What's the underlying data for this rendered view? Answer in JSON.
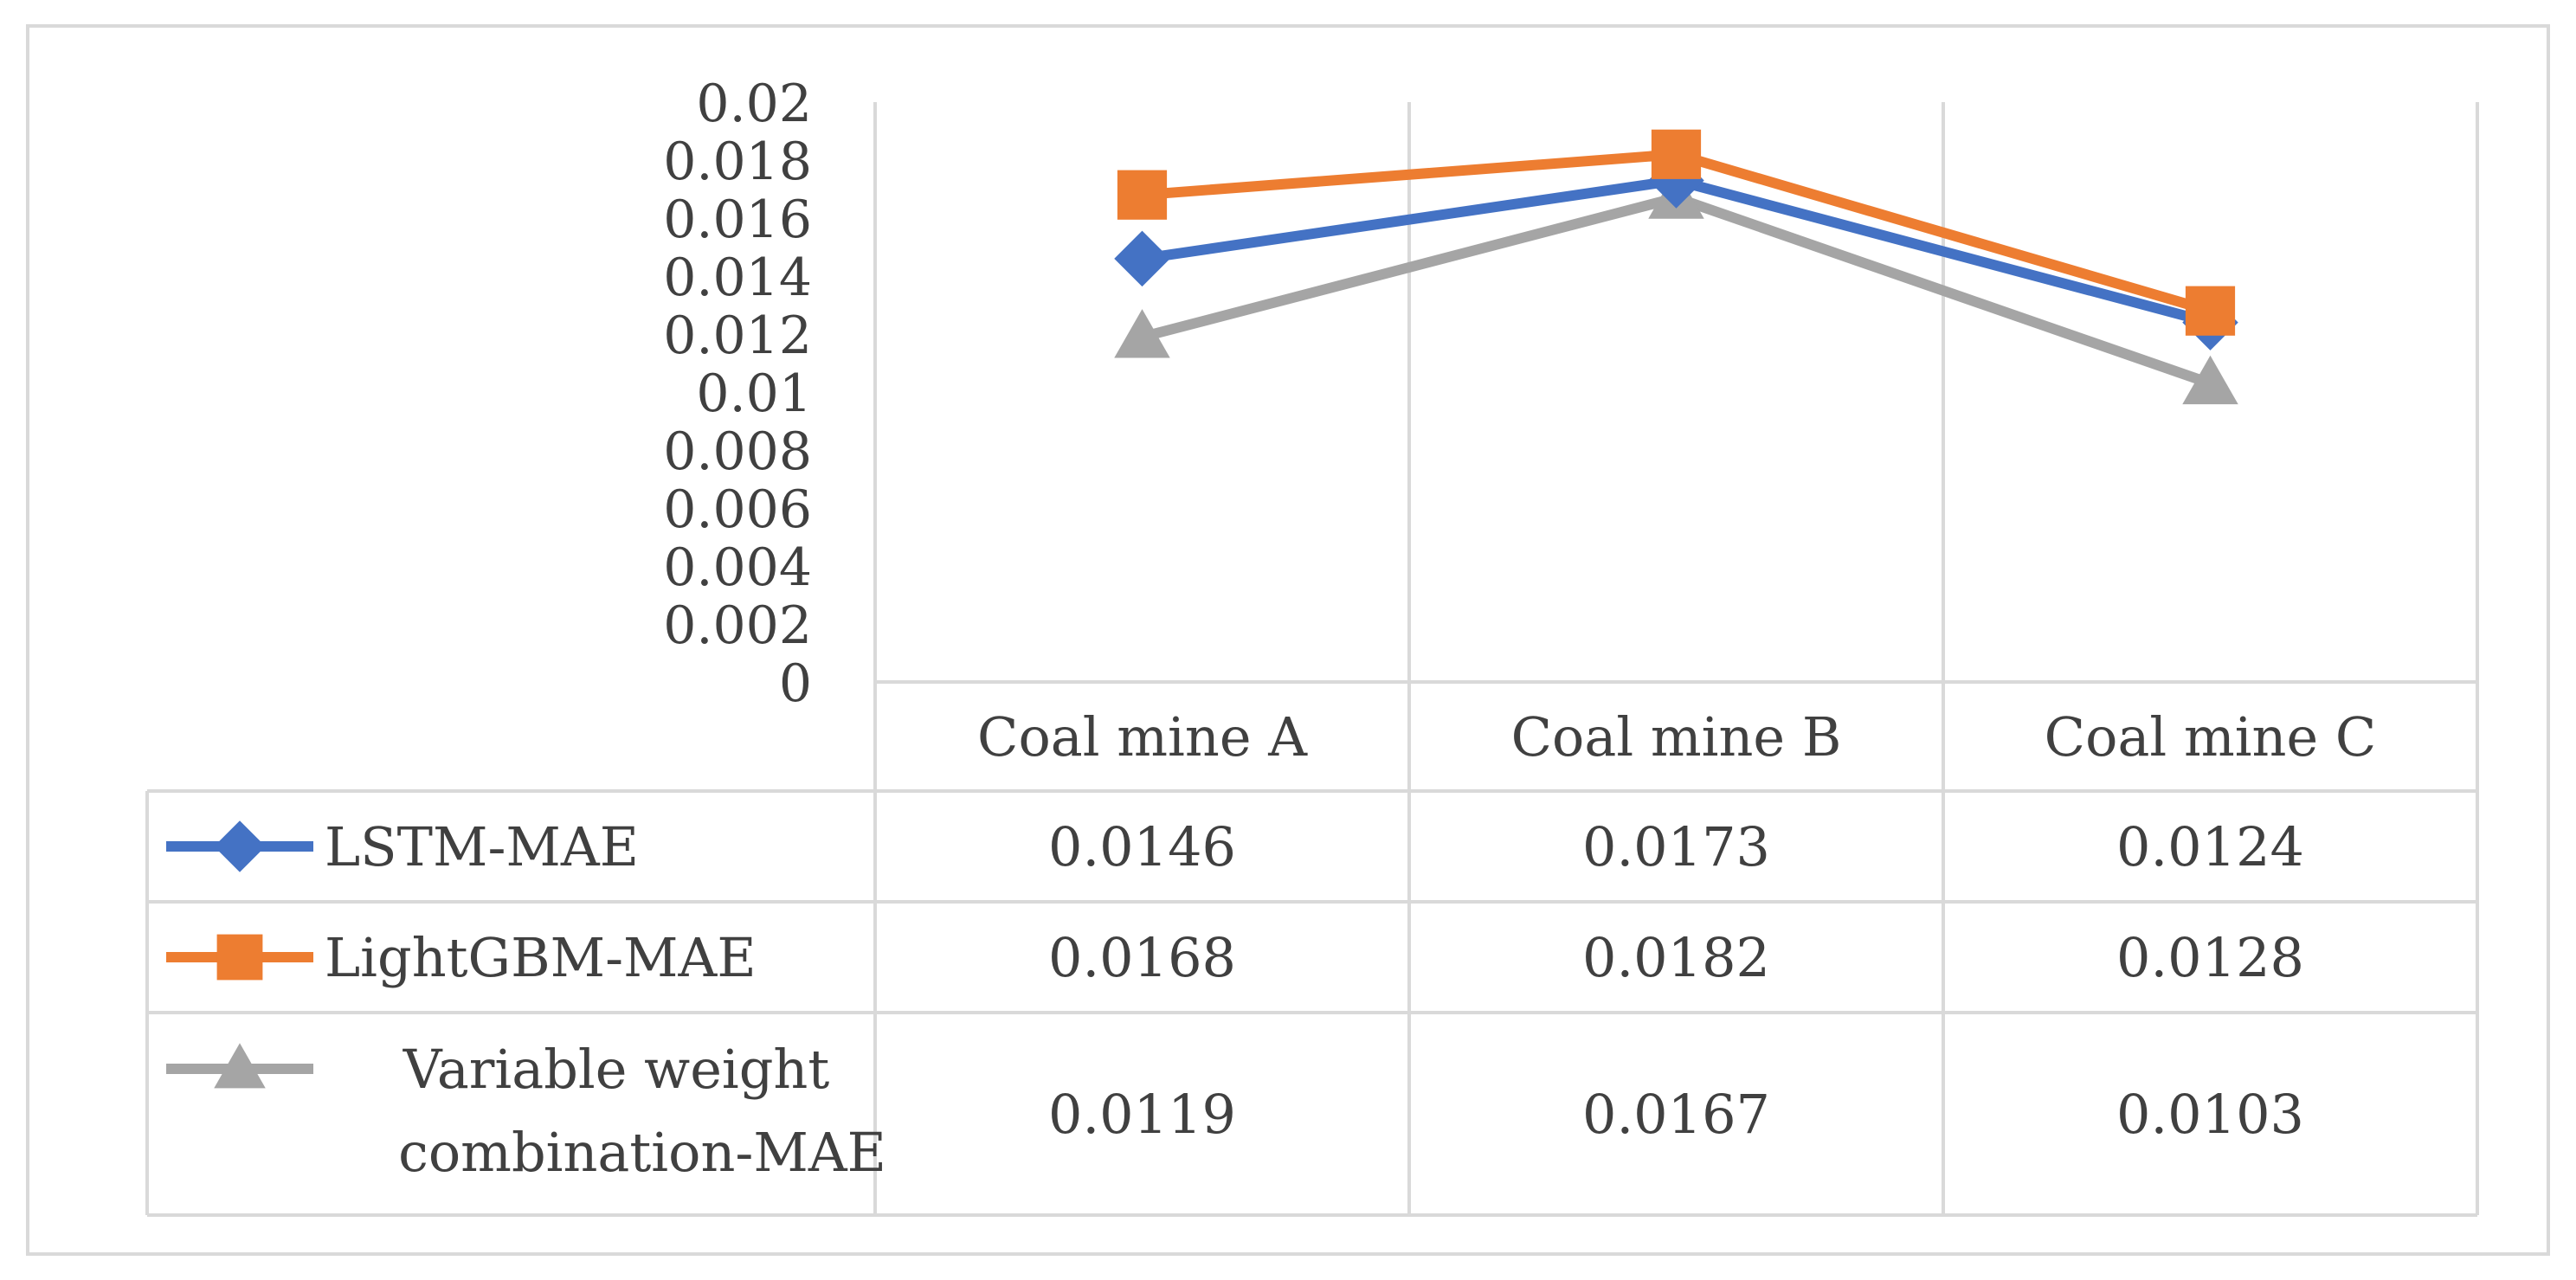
{
  "chart_data": {
    "type": "line",
    "title": "",
    "xlabel": "",
    "ylabel": "",
    "categories": [
      "Coal mine A",
      "Coal mine B",
      "Coal mine C"
    ],
    "ylim": [
      0,
      0.02
    ],
    "yticks": [
      "0",
      "0.002",
      "0.004",
      "0.006",
      "0.008",
      "0.01",
      "0.012",
      "0.014",
      "0.016",
      "0.018",
      "0.02"
    ],
    "grid": "vertical",
    "legend": "data-table",
    "series": [
      {
        "name": "LSTM-MAE",
        "legend_lines": [
          "LSTM-MAE"
        ],
        "marker": "diamond",
        "color": "#4472C4",
        "values": [
          0.0146,
          0.0173,
          0.0124
        ],
        "labels": [
          "0.0146",
          "0.0173",
          "0.0124"
        ]
      },
      {
        "name": "LightGBM-MAE",
        "legend_lines": [
          "LightGBM-MAE"
        ],
        "marker": "square",
        "color": "#ED7D31",
        "values": [
          0.0168,
          0.0182,
          0.0128
        ],
        "labels": [
          "0.0168",
          "0.0182",
          "0.0128"
        ]
      },
      {
        "name": "Variable weight combination-MAE",
        "legend_lines": [
          "Variable weight",
          "combination-MAE"
        ],
        "marker": "triangle",
        "color": "#A5A5A5",
        "values": [
          0.0119,
          0.0167,
          0.0103
        ],
        "labels": [
          "0.0119",
          "0.0167",
          "0.0103"
        ]
      }
    ]
  }
}
